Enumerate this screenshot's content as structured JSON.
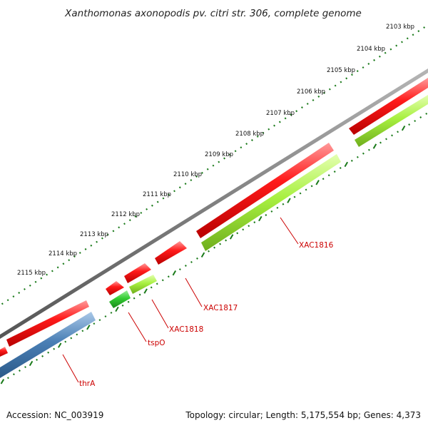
{
  "title": "Xanthomonas axonopodis pv. citri str. 306, complete genome",
  "scale_labels": [
    "2103 kbp",
    "2104 kbp",
    "2105 kbp",
    "2106 kbp",
    "2107 kbp",
    "2108 kbp",
    "2109 kbp",
    "2110 kbp",
    "2111 kbp",
    "2112 kbp",
    "2113 kbp",
    "2114 kbp",
    "2115 kbp"
  ],
  "gene_labels": [
    "XAC1816",
    "XAC1817",
    "XAC1818",
    "tspO",
    "thrA"
  ],
  "colors": {
    "forward_cds": "#ff1a1a",
    "reverse_cds": "#a8f040",
    "reverse_cds_alt": "#33cc33",
    "reverse_cds_blue": "#4a7fb5",
    "backbone": "#808080",
    "tick": "#1a7a1a",
    "label": "#cc0000"
  },
  "footer": {
    "accession": "Accession: NC_003919",
    "summary": "Topology: circular; Length: 5,175,554 bp; Genes: 4,373"
  }
}
